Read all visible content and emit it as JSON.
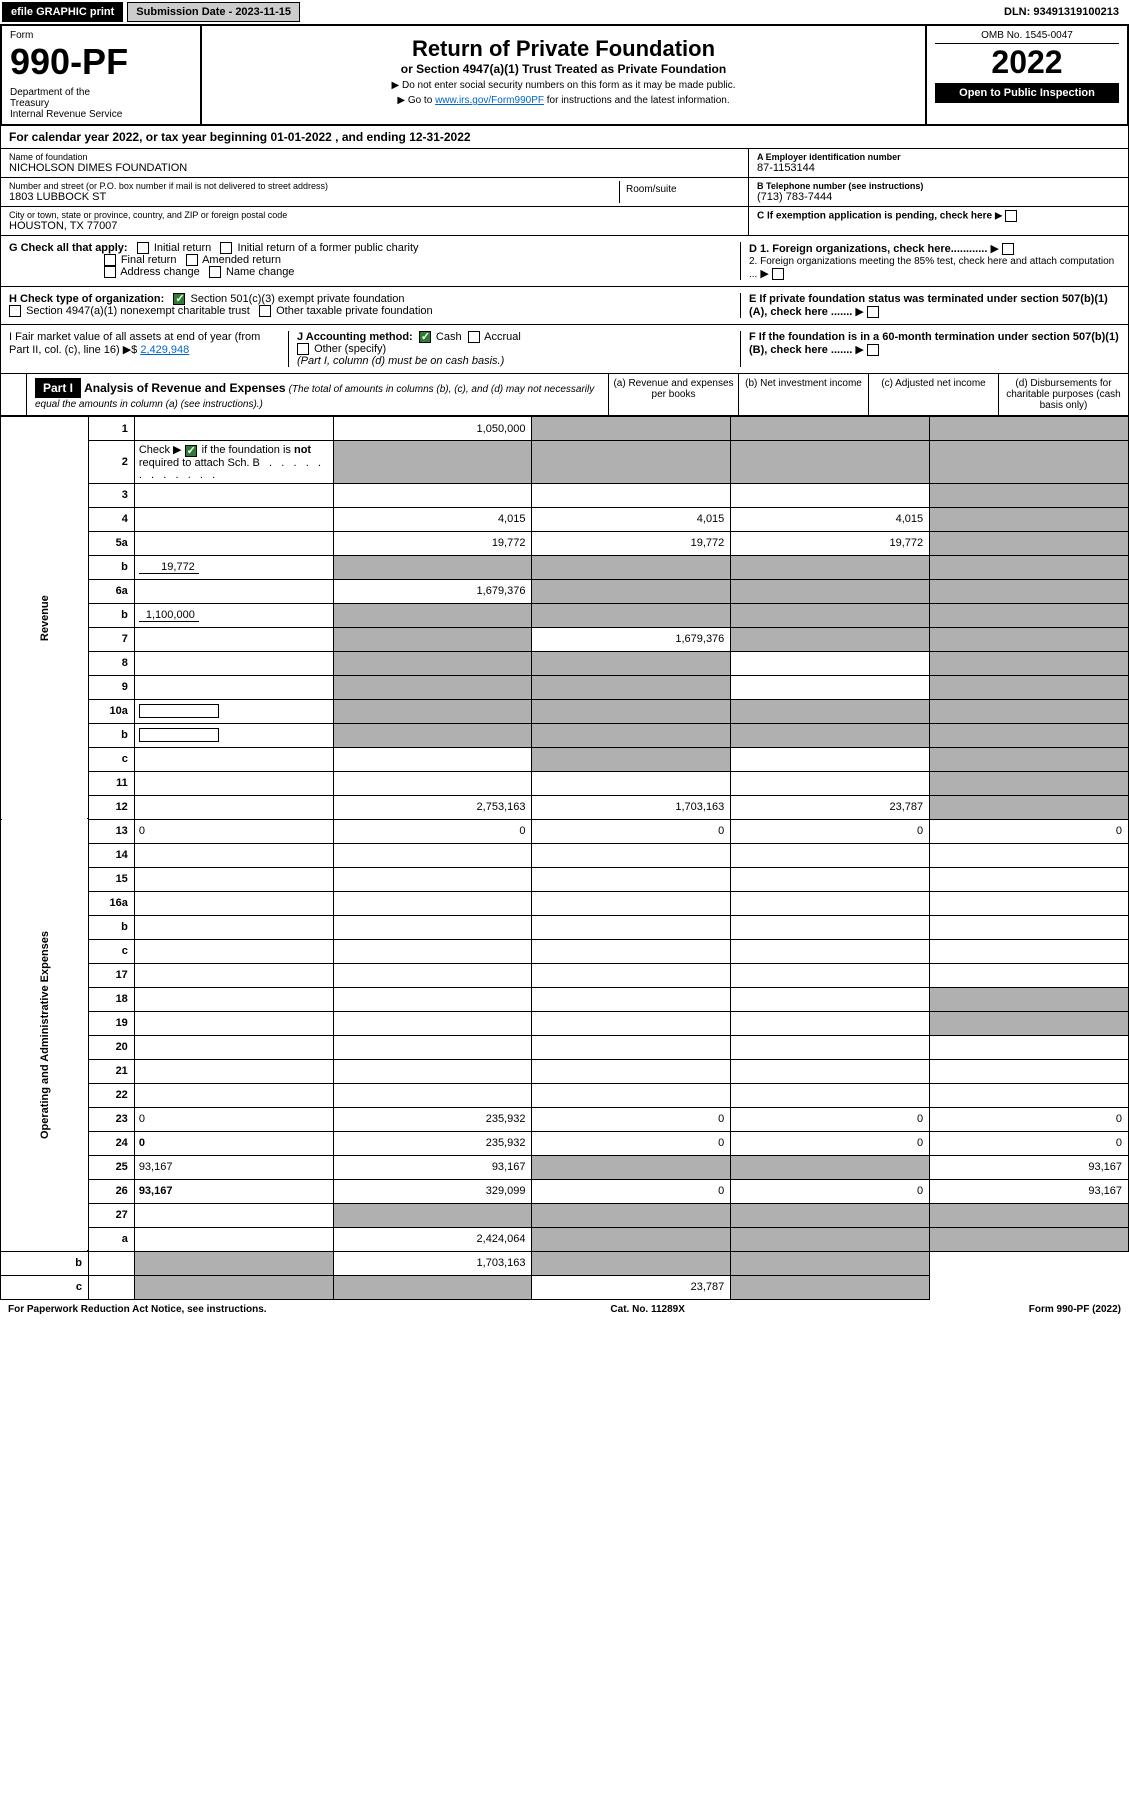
{
  "topbar": {
    "efile": "efile GRAPHIC print",
    "submission": "Submission Date - 2023-11-15",
    "dln": "DLN: 93491319100213"
  },
  "header": {
    "form_label": "Form",
    "form_num": "990-PF",
    "dept": "Department of the Treasury\nInternal Revenue Service",
    "title": "Return of Private Foundation",
    "subtitle": "or Section 4947(a)(1) Trust Treated as Private Foundation",
    "note1": "▶ Do not enter social security numbers on this form as it may be made public.",
    "note2_pre": "▶ Go to ",
    "note2_link": "www.irs.gov/Form990PF",
    "note2_post": " for instructions and the latest information.",
    "omb": "OMB No. 1545-0047",
    "year": "2022",
    "open": "Open to Public Inspection"
  },
  "calyear": {
    "text_pre": "For calendar year 2022, or tax year beginning ",
    "begin": "01-01-2022",
    "text_mid": " , and ending ",
    "end": "12-31-2022"
  },
  "info": {
    "name_label": "Name of foundation",
    "name": "NICHOLSON DIMES FOUNDATION",
    "addr_label": "Number and street (or P.O. box number if mail is not delivered to street address)",
    "addr": "1803 LUBBOCK ST",
    "room_label": "Room/suite",
    "city_label": "City or town, state or province, country, and ZIP or foreign postal code",
    "city": "HOUSTON, TX  77007",
    "a_label": "A Employer identification number",
    "a_val": "87-1153144",
    "b_label": "B Telephone number (see instructions)",
    "b_val": "(713) 783-7444",
    "c_label": "C If exemption application is pending, check here",
    "d1": "D 1. Foreign organizations, check here............",
    "d2": "2. Foreign organizations meeting the 85% test, check here and attach computation ...",
    "e": "E  If private foundation status was terminated under section 507(b)(1)(A), check here .......",
    "f": "F  If the foundation is in a 60-month termination under section 507(b)(1)(B), check here .......",
    "g_label": "G Check all that apply:",
    "g_opts": [
      "Initial return",
      "Initial return of a former public charity",
      "Final return",
      "Amended return",
      "Address change",
      "Name change"
    ],
    "h_label": "H Check type of organization:",
    "h_opts": [
      "Section 501(c)(3) exempt private foundation",
      "Section 4947(a)(1) nonexempt charitable trust",
      "Other taxable private foundation"
    ],
    "i_label": "I Fair market value of all assets at end of year (from Part II, col. (c), line 16) ▶$ ",
    "i_val": "2,429,948",
    "j_label": "J Accounting method:",
    "j_cash": "Cash",
    "j_accrual": "Accrual",
    "j_other": "Other (specify)",
    "j_note": "(Part I, column (d) must be on cash basis.)"
  },
  "part1": {
    "label": "Part I",
    "title": "Analysis of Revenue and Expenses",
    "note": "(The total of amounts in columns (b), (c), and (d) may not necessarily equal the amounts in column (a) (see instructions).)",
    "cols": {
      "a": "(a)  Revenue and expenses per books",
      "b": "(b)  Net investment income",
      "c": "(c)  Adjusted net income",
      "d": "(d)  Disbursements for charitable purposes (cash basis only)"
    }
  },
  "side": {
    "revenue": "Revenue",
    "expenses": "Operating and Administrative Expenses"
  },
  "rows": [
    {
      "n": "1",
      "d": "",
      "a": "1,050,000",
      "b": "",
      "c": "",
      "sb": true,
      "sc": true,
      "sd": true
    },
    {
      "n": "2",
      "d": "",
      "a": "",
      "b": "",
      "c": "",
      "sa": true,
      "sb": true,
      "sc": true,
      "sd": true,
      "bold_not": true
    },
    {
      "n": "3",
      "d": "",
      "a": "",
      "b": "",
      "c": "",
      "sd": true
    },
    {
      "n": "4",
      "d": "",
      "a": "4,015",
      "b": "4,015",
      "c": "4,015",
      "sd": true
    },
    {
      "n": "5a",
      "d": "",
      "a": "19,772",
      "b": "19,772",
      "c": "19,772",
      "sd": true
    },
    {
      "n": "b",
      "d": "",
      "fill": "19,772",
      "a": "",
      "b": "",
      "c": "",
      "sa": true,
      "sb": true,
      "sc": true,
      "sd": true
    },
    {
      "n": "6a",
      "d": "",
      "a": "1,679,376",
      "b": "",
      "c": "",
      "sb": true,
      "sc": true,
      "sd": true
    },
    {
      "n": "b",
      "d": "",
      "fill": "1,100,000",
      "a": "",
      "b": "",
      "c": "",
      "sa": true,
      "sb": true,
      "sc": true,
      "sd": true
    },
    {
      "n": "7",
      "d": "",
      "a": "",
      "b": "1,679,376",
      "c": "",
      "sa": true,
      "sc": true,
      "sd": true
    },
    {
      "n": "8",
      "d": "",
      "a": "",
      "b": "",
      "c": "",
      "sa": true,
      "sb": true,
      "sd": true
    },
    {
      "n": "9",
      "d": "",
      "a": "",
      "b": "",
      "c": "",
      "sa": true,
      "sb": true,
      "sd": true
    },
    {
      "n": "10a",
      "d": "",
      "box": true,
      "a": "",
      "b": "",
      "c": "",
      "sa": true,
      "sb": true,
      "sc": true,
      "sd": true
    },
    {
      "n": "b",
      "d": "",
      "box": true,
      "a": "",
      "b": "",
      "c": "",
      "sa": true,
      "sb": true,
      "sc": true,
      "sd": true
    },
    {
      "n": "c",
      "d": "",
      "a": "",
      "b": "",
      "c": "",
      "sb": true,
      "sd": true
    },
    {
      "n": "11",
      "d": "",
      "a": "",
      "b": "",
      "c": "",
      "sd": true
    },
    {
      "n": "12",
      "d": "",
      "bold": true,
      "a": "2,753,163",
      "b": "1,703,163",
      "c": "23,787",
      "sd": true
    },
    {
      "n": "13",
      "d": "0",
      "a": "0",
      "b": "0",
      "c": "0"
    },
    {
      "n": "14",
      "d": "",
      "a": "",
      "b": "",
      "c": ""
    },
    {
      "n": "15",
      "d": "",
      "a": "",
      "b": "",
      "c": ""
    },
    {
      "n": "16a",
      "d": "",
      "a": "",
      "b": "",
      "c": ""
    },
    {
      "n": "b",
      "d": "",
      "a": "",
      "b": "",
      "c": ""
    },
    {
      "n": "c",
      "d": "",
      "a": "",
      "b": "",
      "c": ""
    },
    {
      "n": "17",
      "d": "",
      "a": "",
      "b": "",
      "c": ""
    },
    {
      "n": "18",
      "d": "",
      "a": "",
      "b": "",
      "c": "",
      "sd": true
    },
    {
      "n": "19",
      "d": "",
      "a": "",
      "b": "",
      "c": "",
      "sd": true
    },
    {
      "n": "20",
      "d": "",
      "a": "",
      "b": "",
      "c": ""
    },
    {
      "n": "21",
      "d": "",
      "a": "",
      "b": "",
      "c": ""
    },
    {
      "n": "22",
      "d": "",
      "a": "",
      "b": "",
      "c": ""
    },
    {
      "n": "23",
      "d": "0",
      "a": "235,932",
      "b": "0",
      "c": "0"
    },
    {
      "n": "24",
      "d": "0",
      "bold": true,
      "a": "235,932",
      "b": "0",
      "c": "0"
    },
    {
      "n": "25",
      "d": "93,167",
      "a": "93,167",
      "b": "",
      "c": "",
      "sb": true,
      "sc": true
    },
    {
      "n": "26",
      "d": "93,167",
      "bold": true,
      "a": "329,099",
      "b": "0",
      "c": "0"
    },
    {
      "n": "27",
      "d": "",
      "a": "",
      "b": "",
      "c": "",
      "sa": true,
      "sb": true,
      "sc": true,
      "sd": true
    },
    {
      "n": "a",
      "d": "",
      "bold": true,
      "a": "2,424,064",
      "b": "",
      "c": "",
      "sb": true,
      "sc": true,
      "sd": true
    },
    {
      "n": "b",
      "d": "",
      "bold": true,
      "a": "",
      "b": "1,703,163",
      "c": "",
      "sa": true,
      "sc": true,
      "sd": true
    },
    {
      "n": "c",
      "d": "",
      "bold": true,
      "a": "",
      "b": "",
      "c": "23,787",
      "sa": true,
      "sb": true,
      "sd": true
    }
  ],
  "footer": {
    "left": "For Paperwork Reduction Act Notice, see instructions.",
    "mid": "Cat. No. 11289X",
    "right": "Form 990-PF (2022)"
  }
}
